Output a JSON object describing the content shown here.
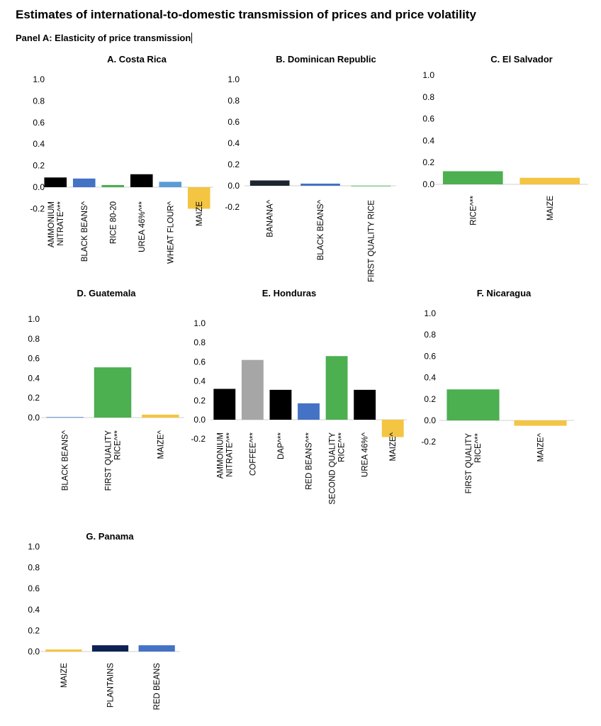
{
  "title": "Estimates of international-to-domestic transmission of prices and price volatility",
  "panel_title": "Panel A: Elasticity of price transmission",
  "chart_data": [
    {
      "type": "bar",
      "title": "A.    Costa Rica",
      "yticks": [
        "1.0",
        "0.8",
        "0.6",
        "0.4",
        "0.2",
        "0.0",
        "-0.2"
      ],
      "ylim": [
        -0.2,
        1.0
      ],
      "grid": false,
      "categories": [
        [
          "AMMONIUM",
          "NITRATE^**"
        ],
        [
          "BLACK BEANS^"
        ],
        [
          "RICE 80-20"
        ],
        [
          "UREA 46%^**"
        ],
        [
          "WHEAT FLOUR^"
        ],
        [
          "MAIZE"
        ]
      ],
      "values": [
        0.09,
        0.08,
        0.02,
        0.12,
        0.05,
        -0.2
      ],
      "colors": [
        "#000000",
        "#4472c4",
        "#4caf50",
        "#000000",
        "#5b9bd5",
        "#f4c542"
      ]
    },
    {
      "type": "bar",
      "title": "B. Dominican Republic",
      "yticks": [
        "1.0",
        "0.8",
        "0.6",
        "0.4",
        "0.2",
        "0.0",
        "-0.2"
      ],
      "ylim": [
        -0.2,
        1.0
      ],
      "grid": false,
      "categories": [
        [
          "BANANA^"
        ],
        [
          "BLACK BEANS^"
        ],
        [
          "FIRST QUALITY RICE"
        ]
      ],
      "values": [
        0.05,
        0.02,
        0.0
      ],
      "colors": [
        "#1f2530",
        "#4472c4",
        "#4caf50"
      ]
    },
    {
      "type": "bar",
      "title": "C. El Salvador",
      "yticks": [
        "1.0",
        "0.8",
        "0.6",
        "0.4",
        "0.2",
        "0.0"
      ],
      "ylim": [
        0.0,
        1.0
      ],
      "grid": false,
      "categories": [
        [
          "RICE^**"
        ],
        [
          "MAIZE"
        ]
      ],
      "values": [
        0.12,
        0.06
      ],
      "colors": [
        "#4caf50",
        "#f4c542"
      ]
    },
    {
      "type": "bar",
      "title": "D. Guatemala",
      "yticks": [
        "1.0",
        "0.8",
        "0.6",
        "0.4",
        "0.2",
        "0.0"
      ],
      "ylim": [
        0.0,
        1.0
      ],
      "grid": false,
      "categories": [
        [
          "BLACK BEANS^"
        ],
        [
          "FIRST QUALITY",
          "RICE^**"
        ],
        [
          "MAIZE^"
        ]
      ],
      "values": [
        0.005,
        0.51,
        0.03
      ],
      "colors": [
        "#4472c4",
        "#4caf50",
        "#f4c542"
      ]
    },
    {
      "type": "bar",
      "title": "E. Honduras",
      "yticks": [
        "1.0",
        "0.8",
        "0.6",
        "0.4",
        "0.2",
        "0.0",
        "-0.2"
      ],
      "ylim": [
        -0.2,
        1.0
      ],
      "grid": false,
      "categories": [
        [
          "AMMONIUM",
          "NITRATE^**"
        ],
        [
          "COFFEE^**"
        ],
        [
          "DAP^**"
        ],
        [
          "RED BEANS^**"
        ],
        [
          "SECOND QUALITY",
          "RICE^**"
        ],
        [
          "UREA 46%^"
        ],
        [
          "MAIZE^"
        ]
      ],
      "values": [
        0.32,
        0.62,
        0.31,
        0.17,
        0.66,
        0.31,
        -0.18
      ],
      "colors": [
        "#000000",
        "#a6a6a6",
        "#000000",
        "#4472c4",
        "#4caf50",
        "#000000",
        "#f4c542"
      ]
    },
    {
      "type": "bar",
      "title": "F. Nicaragua",
      "yticks": [
        "1.0",
        "0.8",
        "0.6",
        "0.4",
        "0.2",
        "0.0",
        "-0.2"
      ],
      "ylim": [
        -0.2,
        1.0
      ],
      "grid": false,
      "categories": [
        [
          "FIRST QUALITY",
          "RICE^**"
        ],
        [
          "MAIZE^"
        ]
      ],
      "values": [
        0.29,
        -0.05
      ],
      "colors": [
        "#4caf50",
        "#f4c542"
      ]
    },
    {
      "type": "bar",
      "title": "G. Panama",
      "yticks": [
        "1.0",
        "0.8",
        "0.6",
        "0.4",
        "0.2",
        "0.0"
      ],
      "ylim": [
        0.0,
        1.0
      ],
      "grid": false,
      "categories": [
        [
          "MAIZE"
        ],
        [
          "PLANTAINS"
        ],
        [
          "RED BEANS"
        ]
      ],
      "values": [
        0.02,
        0.06,
        0.06
      ],
      "colors": [
        "#f4c542",
        "#0d2254",
        "#4472c4"
      ]
    }
  ]
}
